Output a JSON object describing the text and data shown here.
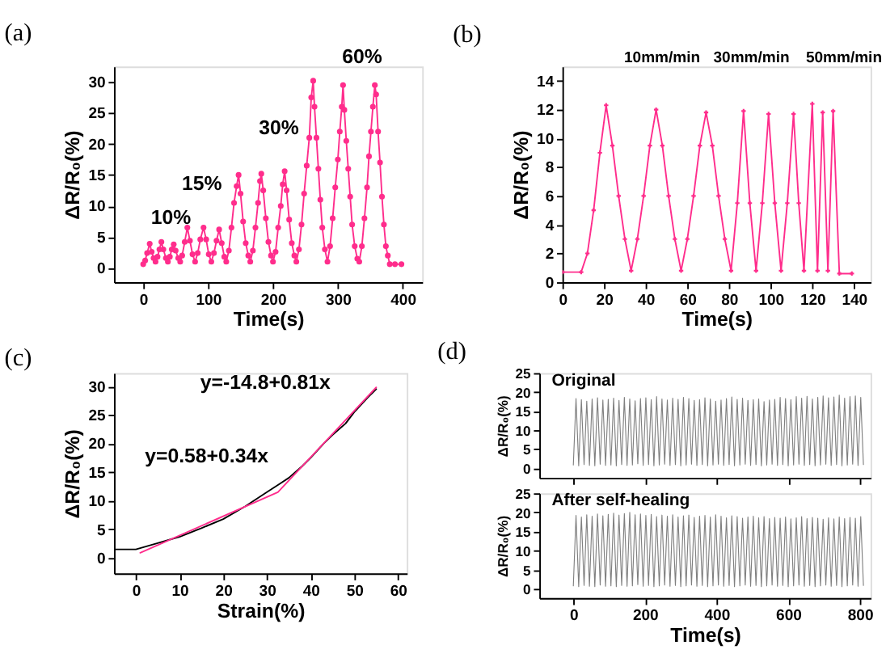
{
  "chart_data": [
    {
      "type": "line",
      "title": "(a)",
      "xlabel": "Time(s)",
      "ylabel": "ΔR/R₀(%)",
      "xlim": [
        -45,
        430
      ],
      "ylim": [
        -2.3,
        32.5
      ],
      "xticks": [
        0,
        100,
        200,
        300,
        400
      ],
      "yticks": [
        0,
        5,
        10,
        15,
        20,
        25,
        30
      ],
      "marker": "circle",
      "grid": false,
      "x": [
        0,
        3,
        6,
        10,
        13,
        16,
        19,
        22,
        25,
        28,
        31,
        35,
        38,
        41,
        44,
        47,
        50,
        54,
        57,
        60,
        64,
        68,
        72,
        76,
        80,
        84,
        88,
        93,
        97,
        101,
        105,
        109,
        113,
        117,
        121,
        125,
        128,
        132,
        136,
        140,
        144,
        147,
        150,
        154,
        158,
        162,
        165,
        169,
        173,
        177,
        180,
        182,
        185,
        189,
        193,
        197,
        200,
        204,
        208,
        212,
        215,
        218,
        221,
        225,
        229,
        233,
        236,
        240,
        244,
        248,
        252,
        256,
        259,
        262,
        264,
        267,
        270,
        273,
        276,
        280,
        284,
        288,
        292,
        296,
        300,
        303,
        306,
        308,
        310,
        313,
        316,
        319,
        322,
        326,
        330,
        333,
        337,
        341,
        345,
        348,
        351,
        354,
        357,
        359,
        362,
        365,
        368,
        371,
        374,
        377,
        380,
        388,
        398
      ],
      "series": [
        {
          "color": "#ff2d8c",
          "values": [
            0.6,
            1.2,
            2.4,
            3.9,
            2.6,
            1.6,
            1.0,
            1.8,
            3.0,
            4.2,
            3.0,
            1.6,
            1.0,
            1.8,
            3.0,
            3.8,
            2.8,
            1.6,
            1.0,
            2.0,
            4.2,
            6.5,
            4.4,
            2.2,
            1.0,
            2.4,
            4.6,
            6.5,
            4.6,
            2.2,
            1.0,
            2.4,
            4.4,
            6.2,
            4.0,
            1.8,
            1.0,
            2.8,
            6.5,
            10.5,
            13.2,
            15.0,
            12.0,
            7.5,
            4.0,
            2.0,
            1.0,
            2.8,
            6.5,
            10.5,
            14.0,
            15.2,
            12.5,
            8.0,
            4.2,
            2.0,
            1.0,
            2.6,
            6.5,
            10.0,
            13.5,
            15.6,
            12.5,
            7.8,
            4.0,
            2.0,
            1.0,
            3.0,
            7.0,
            12.0,
            16.5,
            21.0,
            27.5,
            30.2,
            26.0,
            21.0,
            16.0,
            11.0,
            6.5,
            3.0,
            1.0,
            3.5,
            8.0,
            13.0,
            17.5,
            22.0,
            26.0,
            29.5,
            25.5,
            20.5,
            16.0,
            11.5,
            7.0,
            3.5,
            1.5,
            1.0,
            3.5,
            8.0,
            13.0,
            18.0,
            22.0,
            26.0,
            29.5,
            28.0,
            22.0,
            17.0,
            11.5,
            7.0,
            3.5,
            2.0,
            0.6,
            0.6,
            0.6
          ]
        }
      ],
      "annotations": [
        "10%",
        "15%",
        "30%",
        "60%"
      ]
    },
    {
      "type": "line",
      "title": "(b)",
      "xlabel": "Time(s)",
      "ylabel": "ΔR/R₀(%)",
      "xlim": [
        0,
        148
      ],
      "ylim": [
        0,
        15
      ],
      "xticks": [
        0,
        20,
        40,
        60,
        80,
        100,
        120,
        140
      ],
      "yticks": [
        0,
        2,
        4,
        6,
        8,
        10,
        12,
        14
      ],
      "marker": "cross",
      "grid": false,
      "x": [
        0,
        9,
        12,
        15,
        18,
        21,
        24,
        27,
        30,
        33,
        36,
        39,
        42,
        45,
        48,
        51,
        54,
        57,
        60,
        63,
        66,
        69,
        72,
        75,
        78,
        81,
        84,
        87,
        90,
        93,
        96,
        99,
        102,
        105,
        108,
        111,
        113.5,
        116,
        120,
        122.5,
        125,
        127.5,
        130,
        133,
        139
      ],
      "series": [
        {
          "color": "#ff2d8c",
          "values": [
            0.7,
            0.7,
            2.0,
            5.0,
            9.0,
            12.3,
            9.5,
            6.0,
            3.0,
            0.8,
            3.0,
            6.0,
            9.5,
            12.0,
            9.5,
            6.0,
            3.0,
            0.8,
            3.0,
            6.0,
            9.5,
            11.8,
            9.5,
            6.0,
            3.0,
            0.8,
            5.5,
            11.9,
            5.5,
            0.8,
            5.5,
            11.7,
            5.5,
            0.8,
            5.5,
            11.7,
            5.5,
            0.8,
            12.4,
            0.8,
            11.8,
            0.8,
            11.9,
            0.6,
            0.6
          ]
        }
      ],
      "annotations": [
        "10mm/min",
        "30mm/min",
        "50mm/min"
      ]
    },
    {
      "type": "line",
      "title": "(c)",
      "xlabel": "Strain(%)",
      "ylabel": "ΔR/R₀(%)",
      "xlim": [
        -5,
        62
      ],
      "ylim": [
        -2.7,
        32.3
      ],
      "xticks": [
        0,
        10,
        20,
        30,
        40,
        50,
        60
      ],
      "yticks": [
        0,
        5,
        10,
        15,
        20,
        25,
        30
      ],
      "grid": false,
      "series": [
        {
          "color": "#000000",
          "x": [
            -5,
            0,
            5,
            10,
            15,
            20,
            25,
            30,
            33,
            35,
            38,
            40,
            43,
            45,
            48,
            50,
            53,
            55
          ],
          "values": [
            1.5,
            1.5,
            2.6,
            3.7,
            5.2,
            6.8,
            9.0,
            11.5,
            13.0,
            14.0,
            16.0,
            17.5,
            20.0,
            21.5,
            23.5,
            25.5,
            28.0,
            29.5
          ]
        },
        {
          "color": "#ff2d8c",
          "x": [
            1,
            32.5,
            55
          ],
          "values": [
            0.9,
            11.5,
            29.8
          ]
        }
      ],
      "annotations": [
        "y=-14.8+0.81x",
        "y=0.58+0.34x"
      ]
    },
    {
      "type": "line",
      "title": "(d)",
      "ylabel": "ΔR/R₀(%)",
      "xlim": [
        -95,
        830
      ],
      "ylim": [
        -2.6,
        25
      ],
      "xticks": [
        0,
        200,
        400,
        600,
        800
      ],
      "yticks": [
        0,
        5,
        10,
        15,
        20,
        25
      ],
      "tick_labels": "y",
      "grid": false,
      "x": [
        0,
        7.5,
        15,
        22.5,
        30,
        37.5,
        45,
        52.5,
        60,
        67.5,
        75,
        82.5,
        90,
        97.5,
        105,
        112.5,
        120,
        127.5,
        135,
        142.5,
        150,
        157.5,
        165,
        172.5,
        180,
        187.5,
        195,
        202.5,
        210,
        217.5,
        225,
        232.5,
        240,
        247.5,
        255,
        262.5,
        270,
        277.5,
        285,
        292.5,
        300,
        307.5,
        315,
        322.5,
        330,
        337.5,
        345,
        352.5,
        360,
        367.5,
        375,
        382.5,
        390,
        397.5,
        405,
        412.5,
        420,
        427.5,
        435,
        442.5,
        450,
        457.5,
        465,
        472.5,
        480,
        487.5,
        495,
        502.5,
        510,
        517.5,
        525,
        532.5,
        540,
        547.5,
        555,
        562.5,
        570,
        577.5,
        585,
        592.5,
        600,
        607.5,
        615,
        622.5,
        630,
        637.5,
        645,
        652.5,
        660,
        667.5,
        675,
        682.5,
        690,
        697.5,
        705,
        712.5,
        720,
        727.5,
        735,
        742.5,
        750,
        757.5,
        765,
        772.5,
        780,
        787.5,
        795,
        802.5,
        810
      ],
      "series": [
        {
          "color": "#808080",
          "values": [
            0.8,
            18.3,
            0.6,
            18.0,
            0.9,
            17.6,
            0.7,
            18.2,
            0.6,
            18.5,
            1.0,
            17.9,
            0.7,
            18.1,
            0.8,
            18.4,
            0.6,
            17.8,
            0.9,
            18.6,
            0.7,
            18.2,
            0.8,
            17.7,
            1.1,
            18.3,
            0.7,
            18.5,
            0.9,
            18.0,
            0.6,
            18.8,
            0.8,
            18.2,
            1.0,
            17.9,
            0.7,
            18.4,
            0.9,
            18.1,
            0.6,
            18.6,
            0.8,
            18.3,
            1.0,
            17.8,
            0.7,
            18.0,
            0.9,
            18.5,
            0.6,
            18.2,
            0.8,
            17.6,
            1.0,
            17.9,
            0.7,
            18.3,
            0.9,
            18.7,
            0.6,
            18.1,
            0.8,
            18.4,
            1.0,
            17.8,
            0.7,
            18.0,
            0.9,
            18.2,
            0.6,
            17.5,
            0.8,
            17.9,
            1.0,
            18.1,
            0.7,
            18.6,
            0.9,
            18.3,
            0.6,
            18.0,
            0.8,
            18.8,
            1.0,
            18.4,
            0.7,
            18.9,
            0.9,
            18.2,
            0.6,
            18.6,
            0.8,
            19.0,
            1.0,
            18.5,
            0.7,
            18.7,
            0.9,
            19.2,
            0.6,
            18.4,
            0.8,
            18.8,
            1.0,
            19.0,
            0.7,
            18.6,
            0.9
          ]
        }
      ],
      "annotations": [
        "Original"
      ]
    },
    {
      "type": "line",
      "xlabel": "Time(s)",
      "ylabel": "ΔR/R₀(%)",
      "xlim": [
        -95,
        830
      ],
      "ylim": [
        -2.4,
        25
      ],
      "xticks": [
        0,
        200,
        400,
        600,
        800
      ],
      "yticks": [
        0,
        5,
        10,
        15,
        20,
        25
      ],
      "grid": false,
      "x": [
        0,
        7.5,
        15,
        22.5,
        30,
        37.5,
        45,
        52.5,
        60,
        67.5,
        75,
        82.5,
        90,
        97.5,
        105,
        112.5,
        120,
        127.5,
        135,
        142.5,
        150,
        157.5,
        165,
        172.5,
        180,
        187.5,
        195,
        202.5,
        210,
        217.5,
        225,
        232.5,
        240,
        247.5,
        255,
        262.5,
        270,
        277.5,
        285,
        292.5,
        300,
        307.5,
        315,
        322.5,
        330,
        337.5,
        345,
        352.5,
        360,
        367.5,
        375,
        382.5,
        390,
        397.5,
        405,
        412.5,
        420,
        427.5,
        435,
        442.5,
        450,
        457.5,
        465,
        472.5,
        480,
        487.5,
        495,
        502.5,
        510,
        517.5,
        525,
        532.5,
        540,
        547.5,
        555,
        562.5,
        570,
        577.5,
        585,
        592.5,
        600,
        607.5,
        615,
        622.5,
        630,
        637.5,
        645,
        652.5,
        660,
        667.5,
        675,
        682.5,
        690,
        697.5,
        705,
        712.5,
        720,
        727.5,
        735,
        742.5,
        750,
        757.5,
        765,
        772.5,
        780,
        787.5,
        795,
        802.5,
        810
      ],
      "series": [
        {
          "color": "#808080",
          "values": [
            0.8,
            19.2,
            0.6,
            18.8,
            0.9,
            19.4,
            0.7,
            19.0,
            0.6,
            19.6,
            1.0,
            19.1,
            0.7,
            19.5,
            0.8,
            19.8,
            0.6,
            19.3,
            0.9,
            19.7,
            0.7,
            20.0,
            0.8,
            19.4,
            1.1,
            19.6,
            0.7,
            19.2,
            0.9,
            19.5,
            0.6,
            18.9,
            0.8,
            19.3,
            1.0,
            19.0,
            0.7,
            19.4,
            0.9,
            18.8,
            0.6,
            19.1,
            0.8,
            19.3,
            1.0,
            18.7,
            0.7,
            19.0,
            0.9,
            19.2,
            0.6,
            18.8,
            0.8,
            19.4,
            1.0,
            19.0,
            0.7,
            18.6,
            0.9,
            19.1,
            0.6,
            18.9,
            0.8,
            18.5,
            1.0,
            18.8,
            0.7,
            19.0,
            0.9,
            18.6,
            0.6,
            18.9,
            0.8,
            18.4,
            1.0,
            18.7,
            0.7,
            18.5,
            0.9,
            18.8,
            0.6,
            18.3,
            0.8,
            18.6,
            1.0,
            18.9,
            0.7,
            18.4,
            0.9,
            18.7,
            0.6,
            18.5,
            0.8,
            18.2,
            1.0,
            18.6,
            0.7,
            18.3,
            0.9,
            18.8,
            0.6,
            18.4,
            0.8,
            18.7,
            1.0,
            18.5,
            0.7,
            18.9,
            0.9
          ]
        }
      ],
      "annotations": [
        "After self-healing"
      ]
    }
  ]
}
